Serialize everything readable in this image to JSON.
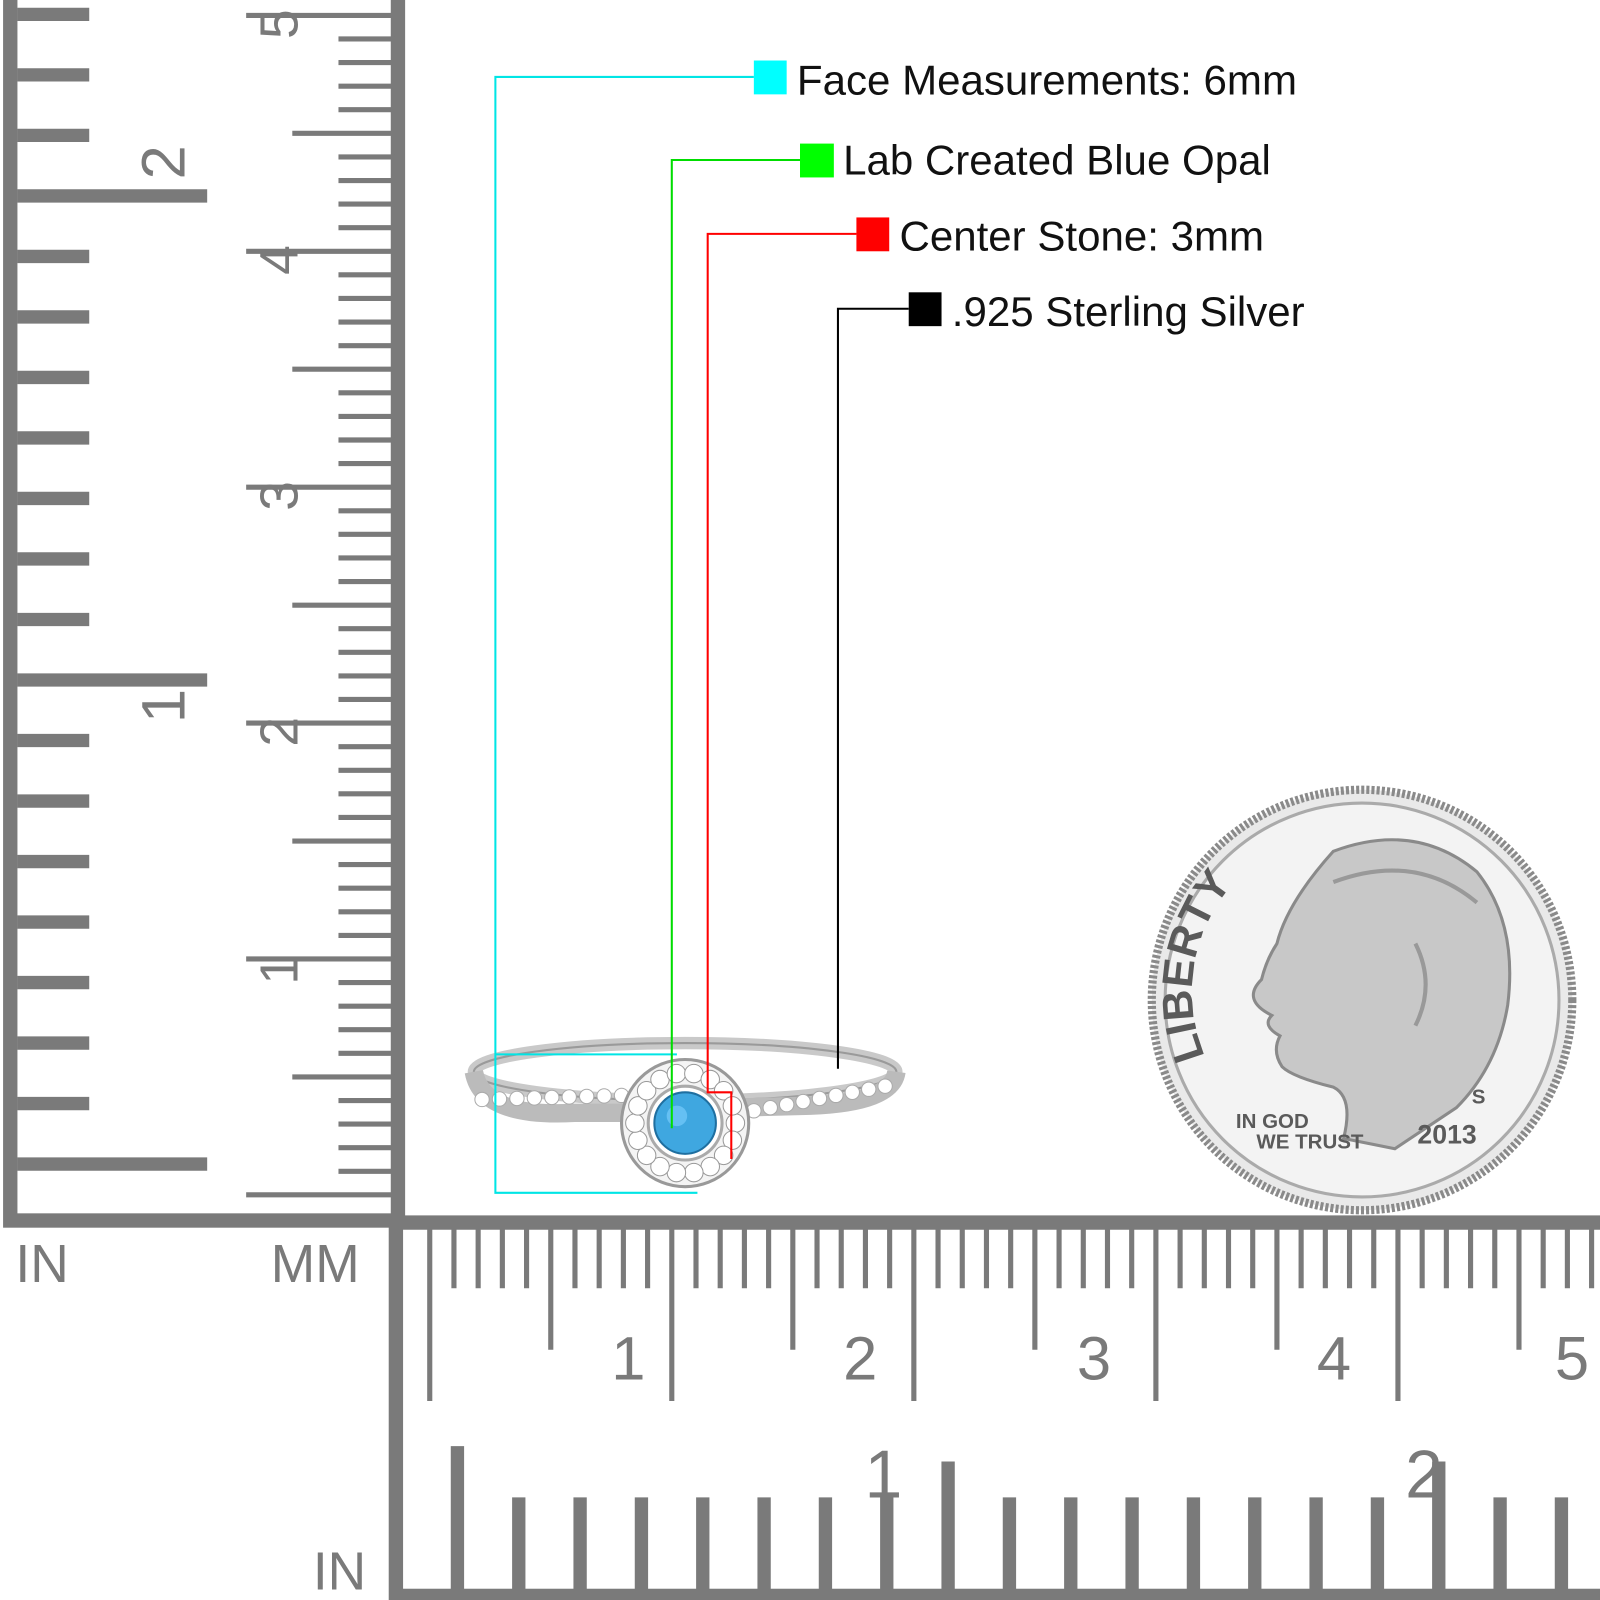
{
  "legend": [
    {
      "label": "Face Measurements: 6mm",
      "color": "#00ffff"
    },
    {
      "label": "Lab Created Blue Opal",
      "color": "#00ff00"
    },
    {
      "label": "Center Stone: 3mm",
      "color": "#ff0000"
    },
    {
      "label": ".925 Sterling Silver",
      "color": "#000000"
    }
  ],
  "vertical_ruler": {
    "inch_label": "IN",
    "mm_label": "MM",
    "cm_numbers": [
      "1",
      "2",
      "3",
      "4",
      "5"
    ],
    "inch_numbers": [
      "1",
      "2"
    ]
  },
  "horizontal_ruler": {
    "inch_label": "IN",
    "cm_numbers": [
      "1",
      "2",
      "3",
      "4",
      "5"
    ],
    "inch_numbers": [
      "1",
      "2"
    ]
  },
  "coin": {
    "liberty": "LIBERTY",
    "motto_line1": "IN GOD",
    "motto_line2": "WE TRUST",
    "year": "2013",
    "mint": "S"
  },
  "colors": {
    "ruler": "#7a7a7a",
    "opal": "#3fa7e0"
  }
}
